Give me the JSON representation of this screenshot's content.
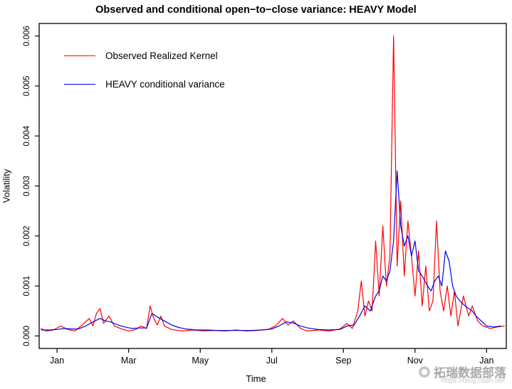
{
  "watermark": {
    "url": "https://blog.csdn.net",
    "text": "拓瑞数据部落"
  },
  "chart_data": {
    "type": "line",
    "title": "Observed and conditional open−to−close variance: HEAVY Model",
    "xlabel": "Time",
    "ylabel": "Volatility",
    "xlim": [
      -0.5,
      12.55
    ],
    "ylim": [
      0,
      0.006
    ],
    "grid": false,
    "legend_position": "top-left",
    "x_tick_values": [
      0,
      2,
      4,
      6,
      8,
      10,
      12
    ],
    "x_tick_labels": [
      "Jan",
      "Mar",
      "May",
      "Jul",
      "Sep",
      "Nov",
      "Jan"
    ],
    "y_tick_values": [
      0,
      0.001,
      0.002,
      0.003,
      0.004,
      0.005,
      0.006
    ],
    "y_tick_labels": [
      "0.000",
      "0.001",
      "0.002",
      "0.003",
      "0.004",
      "0.005",
      "0.006"
    ],
    "series": [
      {
        "name": "Observed Realized Kernel",
        "color": "#ff0000",
        "points": [
          [
            -0.45,
            0.00015
          ],
          [
            -0.3,
            0.0001
          ],
          [
            -0.1,
            0.00012
          ],
          [
            0.1,
            0.0002
          ],
          [
            0.3,
            0.00013
          ],
          [
            0.5,
            0.0001
          ],
          [
            0.7,
            0.00022
          ],
          [
            0.9,
            0.00035
          ],
          [
            1.0,
            0.0002
          ],
          [
            1.1,
            0.00045
          ],
          [
            1.2,
            0.00055
          ],
          [
            1.3,
            0.00025
          ],
          [
            1.45,
            0.0004
          ],
          [
            1.6,
            0.0002
          ],
          [
            1.8,
            0.00014
          ],
          [
            2.0,
            0.0001
          ],
          [
            2.2,
            0.00013
          ],
          [
            2.35,
            0.0002
          ],
          [
            2.5,
            0.00015
          ],
          [
            2.6,
            0.0006
          ],
          [
            2.7,
            0.00035
          ],
          [
            2.8,
            0.00022
          ],
          [
            2.9,
            0.0004
          ],
          [
            3.0,
            0.0002
          ],
          [
            3.2,
            0.00013
          ],
          [
            3.5,
            0.0001
          ],
          [
            3.8,
            0.00012
          ],
          [
            4.1,
            0.0001
          ],
          [
            4.4,
            0.00011
          ],
          [
            4.7,
            0.0001
          ],
          [
            5.0,
            0.00012
          ],
          [
            5.3,
            0.0001
          ],
          [
            5.6,
            0.00011
          ],
          [
            5.9,
            0.00013
          ],
          [
            6.1,
            0.0002
          ],
          [
            6.3,
            0.00035
          ],
          [
            6.45,
            0.00022
          ],
          [
            6.6,
            0.0003
          ],
          [
            6.8,
            0.00015
          ],
          [
            7.0,
            0.0001
          ],
          [
            7.3,
            0.00012
          ],
          [
            7.6,
            0.0001
          ],
          [
            7.9,
            0.00014
          ],
          [
            8.1,
            0.00025
          ],
          [
            8.25,
            0.00015
          ],
          [
            8.4,
            0.0005
          ],
          [
            8.5,
            0.0011
          ],
          [
            8.6,
            0.0004
          ],
          [
            8.7,
            0.0007
          ],
          [
            8.8,
            0.0005
          ],
          [
            8.9,
            0.0019
          ],
          [
            9.0,
            0.0008
          ],
          [
            9.1,
            0.0022
          ],
          [
            9.2,
            0.001
          ],
          [
            9.3,
            0.0016
          ],
          [
            9.4,
            0.006
          ],
          [
            9.5,
            0.0014
          ],
          [
            9.6,
            0.0027
          ],
          [
            9.7,
            0.0012
          ],
          [
            9.8,
            0.0023
          ],
          [
            9.9,
            0.0016
          ],
          [
            10.0,
            0.0008
          ],
          [
            10.1,
            0.0017
          ],
          [
            10.2,
            0.0006
          ],
          [
            10.3,
            0.0014
          ],
          [
            10.4,
            0.0005
          ],
          [
            10.5,
            0.0007
          ],
          [
            10.6,
            0.0023
          ],
          [
            10.7,
            0.0009
          ],
          [
            10.8,
            0.0005
          ],
          [
            10.9,
            0.001
          ],
          [
            11.0,
            0.0004
          ],
          [
            11.1,
            0.0009
          ],
          [
            11.2,
            0.0002
          ],
          [
            11.35,
            0.0008
          ],
          [
            11.5,
            0.0004
          ],
          [
            11.6,
            0.0006
          ],
          [
            11.75,
            0.0003
          ],
          [
            11.9,
            0.0002
          ],
          [
            12.1,
            0.00015
          ],
          [
            12.3,
            0.00018
          ],
          [
            12.5,
            0.0002
          ]
        ]
      },
      {
        "name": "HEAVY conditional variance",
        "color": "#0000ee",
        "points": [
          [
            -0.45,
            0.00012
          ],
          [
            -0.2,
            0.00012
          ],
          [
            0.0,
            0.00013
          ],
          [
            0.2,
            0.00015
          ],
          [
            0.4,
            0.00014
          ],
          [
            0.6,
            0.00014
          ],
          [
            0.8,
            0.0002
          ],
          [
            1.0,
            0.00028
          ],
          [
            1.2,
            0.00035
          ],
          [
            1.35,
            0.0003
          ],
          [
            1.5,
            0.00028
          ],
          [
            1.7,
            0.00022
          ],
          [
            1.9,
            0.00018
          ],
          [
            2.1,
            0.00015
          ],
          [
            2.3,
            0.00016
          ],
          [
            2.5,
            0.00016
          ],
          [
            2.65,
            0.00045
          ],
          [
            2.8,
            0.00038
          ],
          [
            3.0,
            0.0003
          ],
          [
            3.2,
            0.00022
          ],
          [
            3.4,
            0.00017
          ],
          [
            3.6,
            0.00014
          ],
          [
            3.9,
            0.00012
          ],
          [
            4.2,
            0.00012
          ],
          [
            4.5,
            0.00011
          ],
          [
            4.8,
            0.00011
          ],
          [
            5.1,
            0.00011
          ],
          [
            5.4,
            0.00011
          ],
          [
            5.7,
            0.00012
          ],
          [
            6.0,
            0.00014
          ],
          [
            6.2,
            0.0002
          ],
          [
            6.4,
            0.00028
          ],
          [
            6.6,
            0.00026
          ],
          [
            6.8,
            0.0002
          ],
          [
            7.0,
            0.00016
          ],
          [
            7.3,
            0.00013
          ],
          [
            7.6,
            0.00012
          ],
          [
            7.9,
            0.00013
          ],
          [
            8.1,
            0.0002
          ],
          [
            8.3,
            0.00022
          ],
          [
            8.45,
            0.0004
          ],
          [
            8.6,
            0.0006
          ],
          [
            8.75,
            0.0005
          ],
          [
            8.9,
            0.0008
          ],
          [
            9.0,
            0.0009
          ],
          [
            9.1,
            0.0012
          ],
          [
            9.2,
            0.0011
          ],
          [
            9.3,
            0.0013
          ],
          [
            9.4,
            0.0019
          ],
          [
            9.5,
            0.0033
          ],
          [
            9.6,
            0.0022
          ],
          [
            9.7,
            0.0018
          ],
          [
            9.8,
            0.002
          ],
          [
            9.9,
            0.0016
          ],
          [
            10.0,
            0.0019
          ],
          [
            10.1,
            0.0013
          ],
          [
            10.2,
            0.0012
          ],
          [
            10.35,
            0.001
          ],
          [
            10.45,
            0.0009
          ],
          [
            10.55,
            0.0011
          ],
          [
            10.65,
            0.0012
          ],
          [
            10.75,
            0.001
          ],
          [
            10.85,
            0.0017
          ],
          [
            10.95,
            0.0015
          ],
          [
            11.05,
            0.001
          ],
          [
            11.15,
            0.0008
          ],
          [
            11.25,
            0.0007
          ],
          [
            11.4,
            0.0006
          ],
          [
            11.5,
            0.00055
          ],
          [
            11.6,
            0.0005
          ],
          [
            11.7,
            0.0004
          ],
          [
            11.85,
            0.0003
          ],
          [
            12.0,
            0.0002
          ],
          [
            12.2,
            0.00018
          ],
          [
            12.4,
            0.0002
          ]
        ]
      }
    ]
  }
}
